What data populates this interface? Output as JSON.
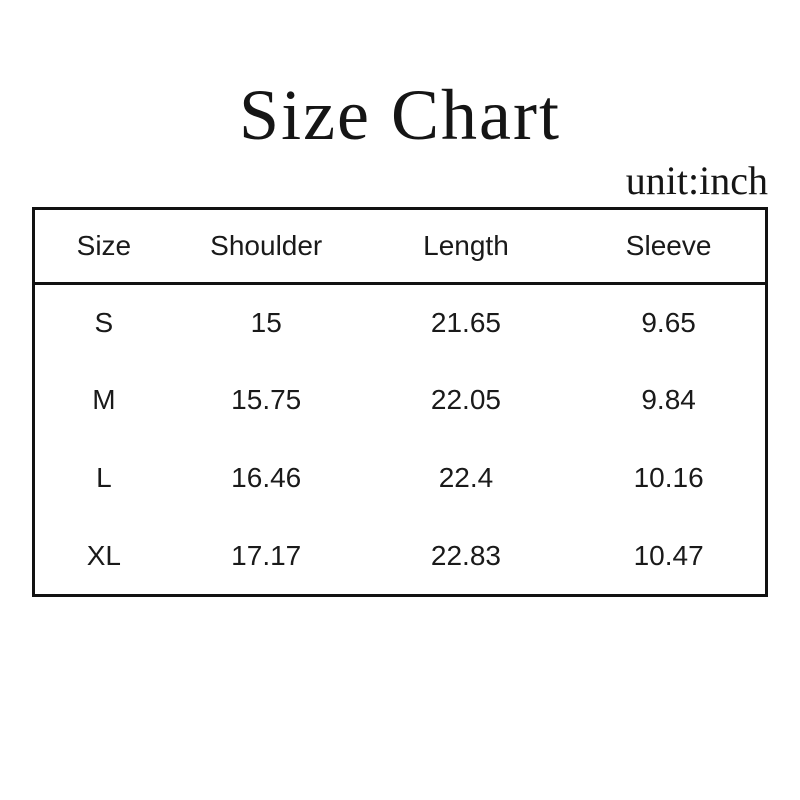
{
  "page": {
    "title": "Size Chart",
    "unit_label": "unit:inch"
  },
  "colors": {
    "text": "#1a1a1a",
    "title_text": "#151515",
    "border": "#111111",
    "background": "#ffffff"
  },
  "chart_data": {
    "type": "table",
    "title": "Size Chart",
    "unit": "unit:inch",
    "columns": [
      "Size",
      "Shoulder",
      "Length",
      "Sleeve"
    ],
    "rows": [
      [
        "S",
        "15",
        "21.65",
        "9.65"
      ],
      [
        "M",
        "15.75",
        "22.05",
        "9.84"
      ],
      [
        "L",
        "16.46",
        "22.4",
        "10.16"
      ],
      [
        "XL",
        "17.17",
        "22.83",
        "10.47"
      ]
    ]
  }
}
